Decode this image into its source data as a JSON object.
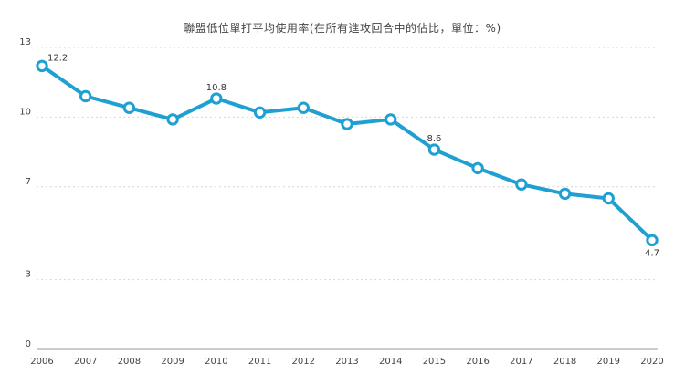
{
  "chart_data": {
    "type": "line",
    "title": "聯盟低位單打平均使用率(在所有進攻回合中的佔比，單位：%)",
    "xlabel": "",
    "ylabel": "",
    "categories": [
      "2006",
      "2007",
      "2008",
      "2009",
      "2010",
      "2011",
      "2012",
      "2013",
      "2014",
      "2015",
      "2016",
      "2017",
      "2018",
      "2019",
      "2020"
    ],
    "series": [
      {
        "values": [
          12.2,
          10.9,
          10.4,
          9.9,
          10.8,
          10.2,
          10.4,
          9.7,
          9.9,
          8.6,
          7.8,
          7.1,
          6.7,
          6.5,
          4.7
        ],
        "color": "#1fa0d2"
      }
    ],
    "data_labels": [
      {
        "index": 0,
        "text": "12.2"
      },
      {
        "index": 4,
        "text": "10.8"
      },
      {
        "index": 9,
        "text": "8.6"
      },
      {
        "index": 14,
        "text": "4.7"
      }
    ],
    "yticks": [
      "0",
      "3",
      "7",
      "10",
      "13"
    ],
    "ylim": [
      0,
      13
    ],
    "grid": true
  }
}
